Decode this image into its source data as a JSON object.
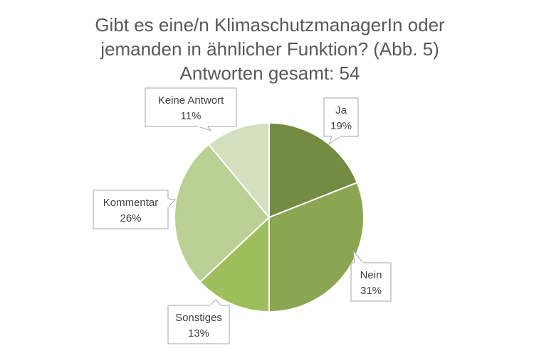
{
  "chart_data": {
    "type": "pie",
    "title_lines": [
      "Gibt es eine/n KlimaschutzmanagerIn oder",
      "jemanden in ähnlicher Funktion? (Abb. 5)",
      "Antworten gesamt: 54"
    ],
    "slices": [
      {
        "label": "Ja",
        "value": 19,
        "value_label": "19%",
        "color": "#748c42"
      },
      {
        "label": "Nein",
        "value": 31,
        "value_label": "31%",
        "color": "#8aa650"
      },
      {
        "label": "Sonstiges",
        "value": 13,
        "value_label": "13%",
        "color": "#9ebe5c"
      },
      {
        "label": "Kommentar",
        "value": 26,
        "value_label": "26%",
        "color": "#bad094"
      },
      {
        "label": "Keine Antwort",
        "value": 11,
        "value_label": "11%",
        "color": "#d2e0c0"
      }
    ],
    "start_angle": "12 o'clock",
    "direction": "clockwise",
    "legend": "none",
    "data_labels": "callouts"
  }
}
